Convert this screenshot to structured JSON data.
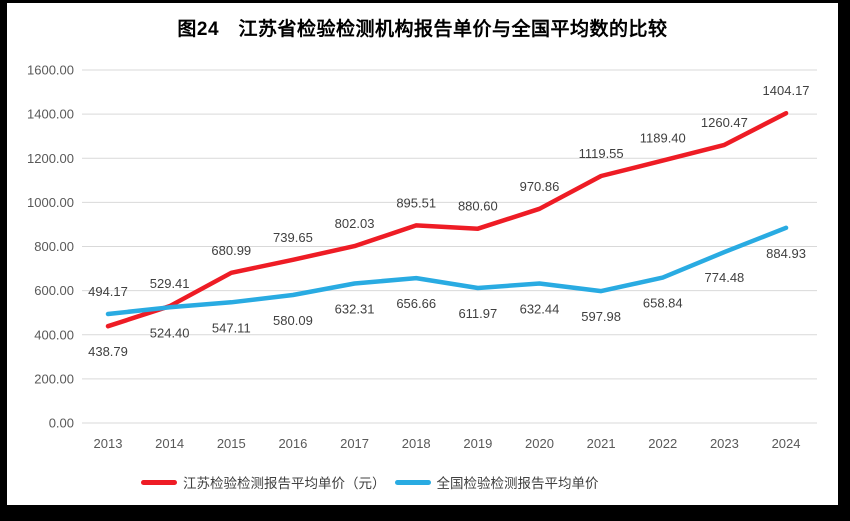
{
  "figure": {
    "title": "图24　江苏省检验检测机构报告单价与全国平均数的比较"
  },
  "chart_data": {
    "type": "line",
    "title": "图24　江苏省检验检测机构报告单价与全国平均数的比较",
    "categories": [
      "2013",
      "2014",
      "2015",
      "2016",
      "2017",
      "2018",
      "2019",
      "2020",
      "2021",
      "2022",
      "2023",
      "2024"
    ],
    "series": [
      {
        "key": "jiangsu",
        "name": "江苏检验检测报告平均单价（元）",
        "color": "#ee1c25",
        "values": [
          438.79,
          529.41,
          680.99,
          739.65,
          802.03,
          895.51,
          880.6,
          970.86,
          1119.55,
          1189.4,
          1260.47,
          1404.17
        ],
        "label_sides": [
          "below",
          "above",
          "above",
          "above",
          "above",
          "above",
          "above",
          "above",
          "above",
          "above",
          "above",
          "above"
        ]
      },
      {
        "key": "national",
        "name": "全国检验检测报告平均单价",
        "color": "#29abe2",
        "values": [
          494.17,
          524.4,
          547.11,
          580.09,
          632.31,
          656.66,
          611.97,
          632.44,
          597.98,
          658.84,
          774.48,
          884.93
        ],
        "label_sides": [
          "above",
          "below",
          "below",
          "below",
          "below",
          "below",
          "below",
          "below",
          "below",
          "below",
          "below",
          "below"
        ]
      }
    ],
    "ylim": [
      0,
      1600
    ],
    "ytick_step": 200,
    "ytick_labels": [
      "0.00",
      "200.00",
      "400.00",
      "600.00",
      "800.00",
      "1000.00",
      "1200.00",
      "1400.00",
      "1600.00"
    ],
    "xlabel": "",
    "ylabel": "",
    "grid": true,
    "legend_position": "bottom"
  },
  "colors": {
    "background": "#ffffff",
    "border": "#000000",
    "gridline": "#d9d9d9",
    "axis_text": "#595959",
    "data_label_text": "#404040"
  }
}
